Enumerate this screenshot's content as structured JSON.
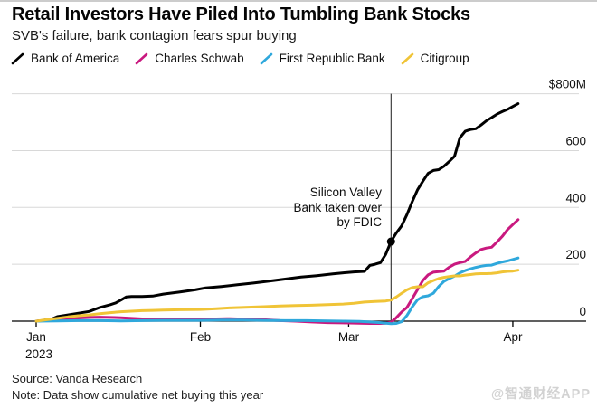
{
  "header": {
    "title": "Retail Investors Have Piled Into Tumbling Bank Stocks",
    "subtitle": "SVB's failure, bank contagion fears spur buying"
  },
  "footer": {
    "source": "Source: Vanda Research",
    "note": "Note: Data show cumulative net buying this year",
    "watermark": "@智通财经APP"
  },
  "colors": {
    "bank_of_america": "#000000",
    "charles_schwab": "#c9197f",
    "first_republic": "#2fa8dc",
    "citigroup": "#f0c437",
    "gridline": "#d8d8d8",
    "axis": "#000000",
    "event_line": "#1a1a1a"
  },
  "chart_data": {
    "type": "line",
    "title": "Retail Investors Have Piled Into Tumbling Bank Stocks",
    "subtitle": "SVB's failure, bank contagion fears spur buying",
    "unit": "USD millions, cumulative net buying in 2023",
    "grid": true,
    "legend_position": "top",
    "x_unit": "days since Jan 1 2023",
    "xlim_days": [
      0,
      91
    ],
    "ylim": [
      -20,
      800
    ],
    "x_ticks": [
      {
        "label": "Jan",
        "sublabel": "2023",
        "day": 0
      },
      {
        "label": "Feb",
        "day": 31
      },
      {
        "label": "Mar",
        "day": 59
      },
      {
        "label": "Apr",
        "day": 90
      }
    ],
    "y_ticks": [
      {
        "label": "$800M",
        "value": 800
      },
      {
        "label": "600",
        "value": 600
      },
      {
        "label": "400",
        "value": 400
      },
      {
        "label": "200",
        "value": 200
      },
      {
        "label": "0",
        "value": 0
      }
    ],
    "event": {
      "label": "Silicon Valley\nBank taken over\nby FDIC",
      "day": 67,
      "series": "Bank of America",
      "value": 280
    },
    "series": [
      {
        "name": "Bank of America",
        "color": "#000000",
        "points": [
          [
            0,
            0
          ],
          [
            1,
            2
          ],
          [
            3,
            8
          ],
          [
            4,
            16
          ],
          [
            6,
            22
          ],
          [
            8,
            28
          ],
          [
            10,
            34
          ],
          [
            12,
            48
          ],
          [
            14,
            58
          ],
          [
            15,
            64
          ],
          [
            16,
            74
          ],
          [
            17,
            85
          ],
          [
            18,
            87
          ],
          [
            20,
            87
          ],
          [
            22,
            88
          ],
          [
            24,
            95
          ],
          [
            27,
            102
          ],
          [
            30,
            110
          ],
          [
            32,
            117
          ],
          [
            35,
            122
          ],
          [
            38,
            128
          ],
          [
            41,
            134
          ],
          [
            44,
            141
          ],
          [
            47,
            148
          ],
          [
            50,
            155
          ],
          [
            53,
            160
          ],
          [
            56,
            166
          ],
          [
            58,
            170
          ],
          [
            60,
            173
          ],
          [
            62,
            175
          ],
          [
            63,
            196
          ],
          [
            64,
            200
          ],
          [
            65,
            206
          ],
          [
            66,
            235
          ],
          [
            67,
            280
          ],
          [
            68,
            310
          ],
          [
            69,
            335
          ],
          [
            70,
            375
          ],
          [
            71,
            420
          ],
          [
            72,
            462
          ],
          [
            73,
            492
          ],
          [
            74,
            520
          ],
          [
            75,
            530
          ],
          [
            76,
            533
          ],
          [
            77,
            545
          ],
          [
            78,
            562
          ],
          [
            79,
            580
          ],
          [
            80,
            645
          ],
          [
            81,
            668
          ],
          [
            82,
            674
          ],
          [
            83,
            677
          ],
          [
            84,
            690
          ],
          [
            85,
            705
          ],
          [
            86,
            716
          ],
          [
            87,
            728
          ],
          [
            88,
            737
          ],
          [
            89,
            745
          ],
          [
            90,
            755
          ],
          [
            91,
            765
          ]
        ]
      },
      {
        "name": "Charles Schwab",
        "color": "#c9197f",
        "points": [
          [
            0,
            0
          ],
          [
            2,
            3
          ],
          [
            4,
            6
          ],
          [
            6,
            9
          ],
          [
            8,
            11
          ],
          [
            10,
            13
          ],
          [
            12,
            14
          ],
          [
            14,
            13
          ],
          [
            16,
            12
          ],
          [
            18,
            10
          ],
          [
            20,
            8
          ],
          [
            23,
            6
          ],
          [
            26,
            5
          ],
          [
            29,
            6
          ],
          [
            31,
            6
          ],
          [
            34,
            8
          ],
          [
            36,
            9
          ],
          [
            38,
            8
          ],
          [
            40,
            7
          ],
          [
            43,
            5
          ],
          [
            46,
            2
          ],
          [
            49,
            0
          ],
          [
            52,
            -3
          ],
          [
            55,
            -5
          ],
          [
            58,
            -6
          ],
          [
            61,
            -7
          ],
          [
            63,
            -8
          ],
          [
            65,
            -8
          ],
          [
            66,
            -7
          ],
          [
            67,
            -4
          ],
          [
            68,
            12
          ],
          [
            69,
            32
          ],
          [
            70,
            48
          ],
          [
            71,
            79
          ],
          [
            72,
            111
          ],
          [
            73,
            143
          ],
          [
            74,
            163
          ],
          [
            75,
            172
          ],
          [
            76,
            174
          ],
          [
            77,
            176
          ],
          [
            78,
            190
          ],
          [
            79,
            200
          ],
          [
            80,
            206
          ],
          [
            81,
            210
          ],
          [
            82,
            226
          ],
          [
            83,
            240
          ],
          [
            84,
            252
          ],
          [
            85,
            257
          ],
          [
            86,
            260
          ],
          [
            87,
            278
          ],
          [
            88,
            298
          ],
          [
            89,
            322
          ],
          [
            90,
            340
          ],
          [
            91,
            357
          ]
        ]
      },
      {
        "name": "First Republic Bank",
        "color": "#2fa8dc",
        "points": [
          [
            0,
            0
          ],
          [
            4,
            1
          ],
          [
            8,
            2
          ],
          [
            12,
            2
          ],
          [
            16,
            1
          ],
          [
            20,
            2
          ],
          [
            24,
            3
          ],
          [
            28,
            3
          ],
          [
            31,
            3
          ],
          [
            35,
            4
          ],
          [
            39,
            4
          ],
          [
            43,
            3
          ],
          [
            47,
            2
          ],
          [
            51,
            2
          ],
          [
            55,
            1
          ],
          [
            58,
            0
          ],
          [
            61,
            -1
          ],
          [
            63,
            -3
          ],
          [
            65,
            -5
          ],
          [
            66,
            -7
          ],
          [
            67,
            -9
          ],
          [
            68,
            -8
          ],
          [
            69,
            -2
          ],
          [
            70,
            20
          ],
          [
            71,
            50
          ],
          [
            72,
            75
          ],
          [
            73,
            86
          ],
          [
            74,
            89
          ],
          [
            75,
            98
          ],
          [
            76,
            122
          ],
          [
            77,
            140
          ],
          [
            78,
            150
          ],
          [
            79,
            158
          ],
          [
            80,
            170
          ],
          [
            81,
            178
          ],
          [
            82,
            184
          ],
          [
            83,
            189
          ],
          [
            84,
            193
          ],
          [
            85,
            196
          ],
          [
            86,
            197
          ],
          [
            87,
            203
          ],
          [
            88,
            208
          ],
          [
            89,
            212
          ],
          [
            90,
            217
          ],
          [
            91,
            222
          ]
        ]
      },
      {
        "name": "Citigroup",
        "color": "#f0c437",
        "points": [
          [
            0,
            0
          ],
          [
            2,
            5
          ],
          [
            4,
            10
          ],
          [
            6,
            15
          ],
          [
            8,
            19
          ],
          [
            10,
            22
          ],
          [
            12,
            26
          ],
          [
            14,
            30
          ],
          [
            16,
            33
          ],
          [
            18,
            35
          ],
          [
            20,
            37
          ],
          [
            22,
            38
          ],
          [
            24,
            39
          ],
          [
            27,
            40
          ],
          [
            31,
            41
          ],
          [
            34,
            44
          ],
          [
            37,
            47
          ],
          [
            40,
            49
          ],
          [
            43,
            51
          ],
          [
            46,
            53
          ],
          [
            49,
            55
          ],
          [
            52,
            56
          ],
          [
            55,
            58
          ],
          [
            58,
            60
          ],
          [
            60,
            63
          ],
          [
            62,
            67
          ],
          [
            64,
            69
          ],
          [
            66,
            71
          ],
          [
            67,
            74
          ],
          [
            68,
            85
          ],
          [
            69,
            98
          ],
          [
            70,
            110
          ],
          [
            71,
            118
          ],
          [
            72,
            121
          ],
          [
            73,
            121
          ],
          [
            74,
            135
          ],
          [
            75,
            143
          ],
          [
            76,
            150
          ],
          [
            77,
            154
          ],
          [
            78,
            157
          ],
          [
            79,
            159
          ],
          [
            80,
            159
          ],
          [
            81,
            162
          ],
          [
            82,
            164
          ],
          [
            83,
            166
          ],
          [
            84,
            167
          ],
          [
            85,
            167
          ],
          [
            86,
            168
          ],
          [
            87,
            170
          ],
          [
            88,
            173
          ],
          [
            89,
            175
          ],
          [
            90,
            176
          ],
          [
            91,
            179
          ]
        ]
      }
    ]
  }
}
